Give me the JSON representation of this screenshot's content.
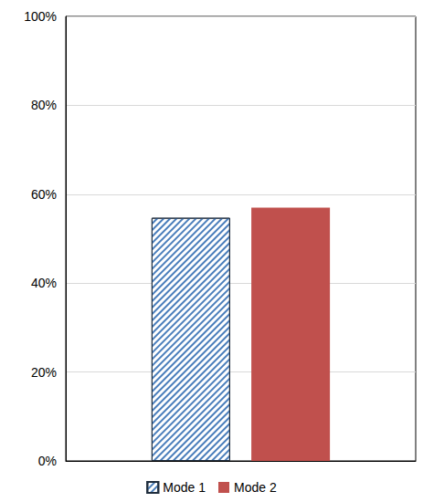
{
  "chart_data": {
    "type": "bar",
    "categories": [
      null
    ],
    "series": [
      {
        "name": "Mode 1",
        "color": "#4a7ebb",
        "marker": "hatch",
        "values": [
          54.7
        ]
      },
      {
        "name": "Mode 2",
        "color": "#c0504d",
        "values": [
          57
        ]
      }
    ],
    "ylim": [
      0,
      100
    ],
    "yticks": [
      {
        "value": 0,
        "label": "0%"
      },
      {
        "value": 20,
        "label": "20%"
      },
      {
        "value": 40,
        "label": "40%"
      },
      {
        "value": 60,
        "label": "60%"
      },
      {
        "value": 80,
        "label": "80%"
      },
      {
        "value": 100,
        "label": "100%"
      }
    ],
    "grid": true,
    "legend": "bottom"
  }
}
